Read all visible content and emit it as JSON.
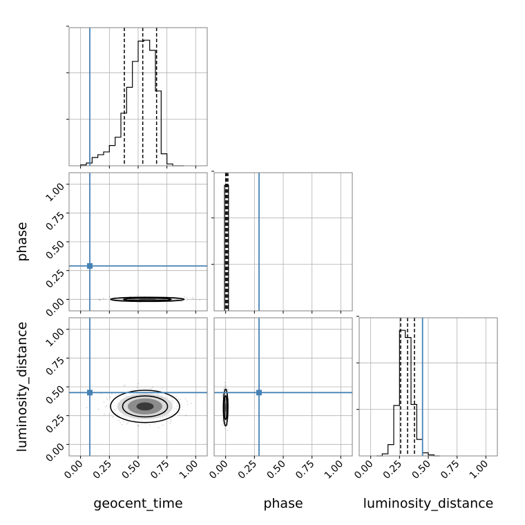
{
  "chart_data": {
    "type": "corner",
    "parameters": [
      "geocent_time",
      "phase",
      "luminosity_distance"
    ],
    "axis_range": [
      -0.1,
      1.1
    ],
    "tick_values": [
      0.0,
      0.25,
      0.5,
      0.75,
      1.0
    ],
    "tick_labels": [
      "0.00",
      "0.25",
      "0.50",
      "0.75",
      "1.00"
    ],
    "grid": true,
    "truth_color": "#4682b4",
    "truths": {
      "geocent_time": 0.08,
      "phase": 0.29,
      "luminosity_distance": 0.45
    },
    "marginals": [
      {
        "parameter": "geocent_time",
        "bin_edges": [
          0.0,
          0.05,
          0.1,
          0.15,
          0.2,
          0.25,
          0.3,
          0.35,
          0.4,
          0.45,
          0.5,
          0.55,
          0.6,
          0.65,
          0.7,
          0.75,
          0.8,
          0.85,
          0.9
        ],
        "counts": [
          1,
          3,
          9,
          12,
          15,
          22,
          31,
          57,
          85,
          113,
          135,
          136,
          125,
          81,
          13,
          2,
          0,
          0
        ],
        "quantiles": [
          0.38,
          0.54,
          0.66
        ]
      },
      {
        "parameter": "phase",
        "bin_edges": [
          -0.01,
          0.025
        ],
        "counts": [
          1
        ],
        "quantiles": [
          0.0,
          0.01,
          0.02
        ]
      },
      {
        "parameter": "luminosity_distance",
        "bin_edges": [
          0.05,
          0.1,
          0.15,
          0.2,
          0.25,
          0.3,
          0.35,
          0.4,
          0.45,
          0.5,
          0.55,
          0.6
        ],
        "counts": [
          0,
          2,
          11,
          49,
          122,
          115,
          50,
          16,
          3,
          1,
          0
        ],
        "quantiles": [
          0.26,
          0.32,
          0.38
        ]
      }
    ],
    "joint": [
      {
        "x": "geocent_time",
        "y": "phase",
        "center": [
          0.58,
          0.0
        ],
        "spread": [
          0.16,
          0.004
        ]
      },
      {
        "x": "geocent_time",
        "y": "luminosity_distance",
        "center": [
          0.56,
          0.33
        ],
        "spread": [
          0.15,
          0.07
        ]
      },
      {
        "x": "phase",
        "y": "luminosity_distance",
        "center": [
          0.0,
          0.32
        ],
        "spread": [
          0.01,
          0.08
        ]
      }
    ]
  }
}
